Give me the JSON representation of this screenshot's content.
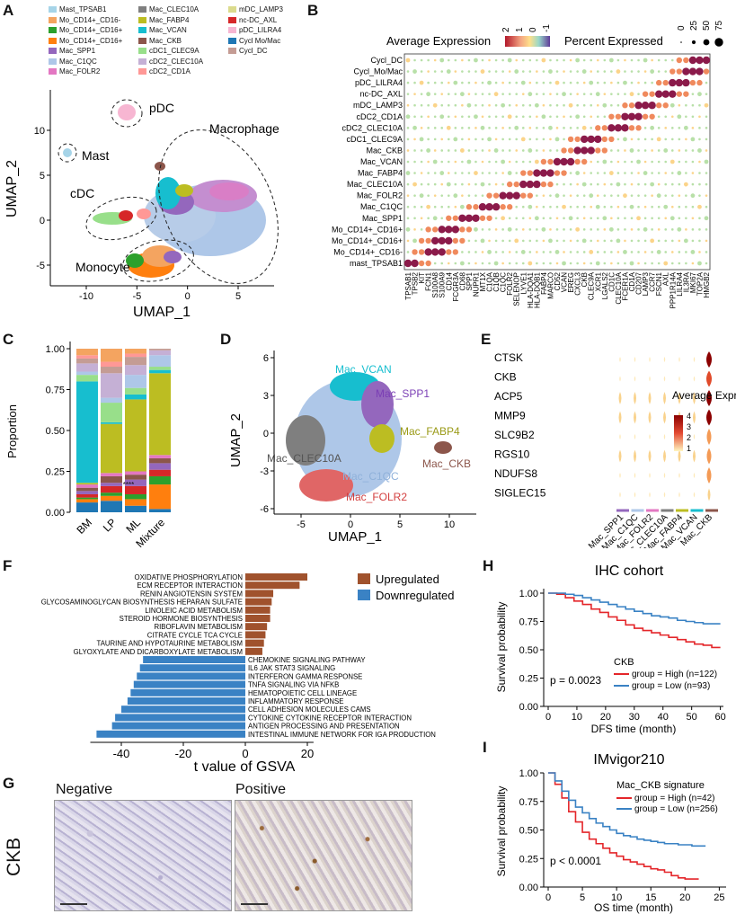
{
  "panels": {
    "A": "A",
    "B": "B",
    "C": "C",
    "D": "D",
    "E": "E",
    "F": "F",
    "G": "G",
    "H": "H",
    "I": "I"
  },
  "panelA": {
    "legend": [
      {
        "label": "Mast_TPSAB1",
        "color": "#a6d4e8"
      },
      {
        "label": "Mo_CD14+_CD16-",
        "color": "#f4a460"
      },
      {
        "label": "Mo_CD14+_CD16+",
        "color": "#2ca02c"
      },
      {
        "label": "Mo_CD14+_CD16+",
        "color": "#ff7f0e"
      },
      {
        "label": "Mac_SPP1",
        "color": "#9467bd"
      },
      {
        "label": "Mac_C1QC",
        "color": "#aec7e8"
      },
      {
        "label": "Mac_FOLR2",
        "color": "#e377c2"
      },
      {
        "label": "Mac_CLEC10A",
        "color": "#7f7f7f"
      },
      {
        "label": "Mac_FABP4",
        "color": "#bcbd22"
      },
      {
        "label": "Mac_VCAN",
        "color": "#17becf"
      },
      {
        "label": "Mac_CKB",
        "color": "#8c564b"
      },
      {
        "label": "cDC1_CLEC9A",
        "color": "#98df8a"
      },
      {
        "label": "cDC2_CLEC10A",
        "color": "#c5b0d5"
      },
      {
        "label": "cDC2_CD1A",
        "color": "#ff9896"
      },
      {
        "label": "mDC_LAMP3",
        "color": "#dbdb8d"
      },
      {
        "label": "nc-DC_AXL",
        "color": "#d62728"
      },
      {
        "label": "pDC_LILRA4",
        "color": "#f7b6d2"
      },
      {
        "label": "Cycl Mo/Mac",
        "color": "#1f77b4"
      },
      {
        "label": "Cycl_DC",
        "color": "#c49c94"
      }
    ],
    "annotations": [
      "pDC",
      "Mast",
      "Macrophage",
      "cDC",
      "Monocyte"
    ],
    "xlabel": "UMAP_1",
    "ylabel": "UMAP_2",
    "xticks": [
      "-10",
      "-5",
      "0",
      "5"
    ],
    "yticks": [
      "10",
      "5",
      "0",
      "-5"
    ]
  },
  "panelB": {
    "legend_expr_title": "Average Expression",
    "legend_expr_ticks": [
      "2",
      "1",
      "0",
      "-1"
    ],
    "legend_pct_title": "Percent Expressed",
    "legend_pct_ticks": [
      "0",
      "25",
      "50",
      "75"
    ],
    "rows": [
      "Cycl_DC",
      "Cycl_Mo/Mac",
      "pDC_LILRA4",
      "nc-DC_AXL",
      "mDC_LAMP3",
      "cDC2_CD1A",
      "cDC2_CLEC10A",
      "cDC1_CLEC9A",
      "Mac_CKB",
      "Mac_VCAN",
      "Mac_FABP4",
      "Mac_CLEC10A",
      "Mac_FOLR2",
      "Mac_C1QC",
      "Mac_SPP1",
      "Mo_CD14+_CD16+",
      "Mo_CD14+_CD16+",
      "Mo_CD14+_CD16-",
      "mast_TPSAB1"
    ],
    "genes": [
      "TPSAB1",
      "TPSB2",
      "KIT",
      "FCN1",
      "S100A8",
      "S100A9",
      "CD14",
      "FCGR3A",
      "CD68",
      "SPP1",
      "NUPR1",
      "MT1X",
      "C1QA",
      "C1QB",
      "C1QC",
      "FOLR2",
      "SELENOP",
      "LYVE1",
      "HLA-DQA1",
      "HLA-DQB1",
      "FABP4",
      "MARCO",
      "CD52",
      "VCAN",
      "EREG",
      "CXCL3",
      "CKB",
      "CLEC9A",
      "XCR1",
      "LGALS2",
      "CD1C",
      "CLEC10A",
      "FCER1A",
      "CD1A",
      "CD207",
      "LAMP3",
      "CCR7",
      "FSCN1",
      "AXL",
      "PPP1R14A",
      "LILRA4",
      "IL3RA",
      "MKI67",
      "TOP2A",
      "HMGB2"
    ]
  },
  "panelC": {
    "ylabel": "Proportion",
    "yticks": [
      "1.00",
      "0.75",
      "0.50",
      "0.25",
      "0.00"
    ],
    "categories": [
      "BM",
      "LP",
      "ML",
      "Mixture"
    ],
    "significance": "****"
  },
  "panelD": {
    "xlabel": "UMAP_1",
    "ylabel": "UMAP_2",
    "xticks": [
      "-5",
      "0",
      "5",
      "10"
    ],
    "yticks": [
      "6",
      "3",
      "0",
      "-3",
      "-6"
    ],
    "labels": [
      "Mac_VCAN",
      "Mac_SPP1",
      "Mac_FABP4",
      "Mac_CLEC10A",
      "Mac_C1QC",
      "Mac_CKB",
      "Mac_FOLR2"
    ]
  },
  "panelE": {
    "genes": [
      "CTSK",
      "CKB",
      "ACP5",
      "MMP9",
      "SLC9B2",
      "RGS10",
      "NDUFS8",
      "SIGLEC15"
    ],
    "clusters": [
      "Mac_SPP1",
      "Mac_C1QC",
      "Mac_FOLR2",
      "Mac_CLEC10A",
      "Mac_FABP4",
      "Mac_VCAN",
      "Mac_CKB"
    ],
    "legend_title": "Average Expression",
    "legend_ticks": [
      "4",
      "3",
      "2",
      "1"
    ]
  },
  "chart_data": [
    {
      "type": "bar",
      "title": "",
      "xlabel": "t value of GSVA",
      "xlim": [
        -50,
        25
      ],
      "xticks": [
        "-40",
        "-20",
        "0",
        "20"
      ],
      "legend": [
        {
          "name": "Upregulated",
          "color": "#a0522d"
        },
        {
          "name": "Downregulated",
          "color": "#3a82c4"
        }
      ],
      "categories": [
        "OXIDATIVE PHOSPHORYLATION",
        "ECM RECEPTOR INTERACTION",
        "RENIN ANGIOTENSIN SYSTEM",
        "GLYCOSAMINOGLYCAN BIOSYNTHESIS HEPARAN SULFATE",
        "LINOLEIC ACID METABOLISM",
        "STEROID HORMONE BIOSYNTHESIS",
        "RIBOFLAVIN METABOLISM",
        "CITRATE CYCLE TCA CYCLE",
        "TAURINE AND HYPOTAURINE METABOLISM",
        "GLYOXYLATE AND DICARBOXYLATE METABOLISM",
        "CHEMOKINE SIGNALING PATHWAY",
        "IL6 JAK STAT3 SIGNALING",
        "INTERFERON GAMMA RESPONSE",
        "TNFA SIGNALING VIA NFKB",
        "HEMATOPOIETIC CELL LINEAGE",
        "INFLAMMATORY RESPONSE",
        "CELL ADHESION MOLECULES CAMS",
        "CYTOKINE CYTOKINE RECEPTOR INTERACTION",
        "ANTIGEN PROCESSING AND PRESENTATION",
        "INTESTINAL IMMUNE NETWORK FOR IGA PRODUCTION"
      ],
      "values": [
        20,
        17.5,
        9,
        8.5,
        8,
        8,
        7,
        6.5,
        6,
        5.5,
        -33,
        -34,
        -35,
        -36,
        -37,
        -38,
        -40,
        -42,
        -43,
        -48
      ]
    },
    {
      "type": "line",
      "title": "IHC cohort",
      "xlabel": "DFS time (month)",
      "ylabel": "Survival probability",
      "xlim": [
        0,
        62
      ],
      "ylim": [
        0,
        1
      ],
      "xticks": [
        "0",
        "10",
        "20",
        "30",
        "40",
        "50",
        "60"
      ],
      "yticks": [
        "1.00",
        "0.75",
        "0.50",
        "0.25",
        "0.00"
      ],
      "legend_title": "CKB",
      "pvalue": "p = 0.0023",
      "series": [
        {
          "name": "group = High (n=122)",
          "color": "#e4262a",
          "x": [
            0,
            3,
            6,
            9,
            12,
            15,
            18,
            21,
            24,
            27,
            30,
            33,
            36,
            39,
            42,
            45,
            48,
            51,
            54,
            57,
            60
          ],
          "y": [
            1.0,
            0.99,
            0.96,
            0.93,
            0.9,
            0.86,
            0.83,
            0.79,
            0.76,
            0.72,
            0.69,
            0.67,
            0.65,
            0.63,
            0.61,
            0.59,
            0.57,
            0.55,
            0.54,
            0.52,
            0.52
          ]
        },
        {
          "name": "group = Low (n=93)",
          "color": "#3a82c4",
          "x": [
            0,
            3,
            6,
            9,
            12,
            15,
            18,
            21,
            24,
            27,
            30,
            33,
            36,
            39,
            42,
            45,
            48,
            51,
            54,
            57,
            60
          ],
          "y": [
            1.0,
            1.0,
            0.99,
            0.98,
            0.96,
            0.94,
            0.92,
            0.9,
            0.88,
            0.86,
            0.84,
            0.82,
            0.8,
            0.79,
            0.78,
            0.76,
            0.75,
            0.74,
            0.73,
            0.73,
            0.73
          ]
        }
      ]
    },
    {
      "type": "line",
      "title": "IMvigor210",
      "xlabel": "OS time (month)",
      "ylabel": "Survival probability",
      "xlim": [
        0,
        26
      ],
      "ylim": [
        0,
        1
      ],
      "xticks": [
        "0",
        "5",
        "10",
        "15",
        "20",
        "25"
      ],
      "yticks": [
        "1.00",
        "0.75",
        "0.50",
        "0.25",
        "0.00"
      ],
      "legend_title": "Mac_CKB signature",
      "pvalue": "p < 0.0001",
      "series": [
        {
          "name": "group = High (n=42)",
          "color": "#e4262a",
          "x": [
            0,
            1,
            2,
            3,
            4,
            5,
            6,
            7,
            8,
            9,
            10,
            11,
            12,
            13,
            14,
            15,
            16,
            17,
            18,
            19,
            20,
            21,
            22
          ],
          "y": [
            1.0,
            0.9,
            0.78,
            0.66,
            0.57,
            0.48,
            0.42,
            0.38,
            0.34,
            0.3,
            0.27,
            0.24,
            0.22,
            0.2,
            0.18,
            0.16,
            0.15,
            0.13,
            0.1,
            0.08,
            0.07,
            0.07,
            0.07
          ]
        },
        {
          "name": "group = Low (n=256)",
          "color": "#3a82c4",
          "x": [
            0,
            1,
            2,
            3,
            4,
            5,
            6,
            7,
            8,
            9,
            10,
            11,
            12,
            13,
            14,
            15,
            16,
            17,
            18,
            19,
            20,
            21,
            22,
            23
          ],
          "y": [
            1.0,
            0.93,
            0.84,
            0.76,
            0.7,
            0.65,
            0.6,
            0.56,
            0.53,
            0.5,
            0.47,
            0.45,
            0.44,
            0.42,
            0.41,
            0.4,
            0.39,
            0.38,
            0.38,
            0.37,
            0.37,
            0.36,
            0.36,
            0.36
          ]
        }
      ]
    }
  ],
  "panelG": {
    "left_title": "Negative",
    "right_title": "Positive",
    "row_label": "CKB"
  }
}
